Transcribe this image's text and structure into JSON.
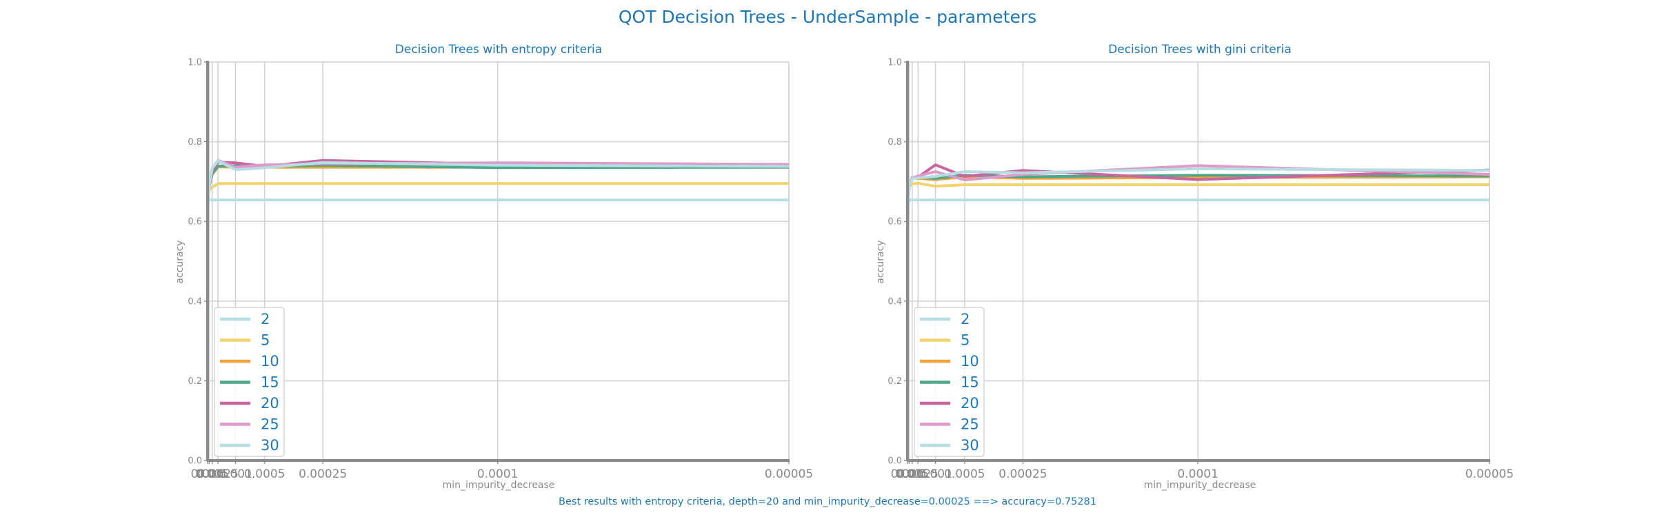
{
  "figure": {
    "title": "QOT Decision Trees - UnderSample - parameters",
    "footer": "Best results with entropy criteria, depth=20 and min_impurity_decrease=0.00025 ==> accuracy=0.75281"
  },
  "colors": {
    "title": "#1f77b4",
    "axes": "#8a8a8a",
    "grid": "#d2d2d2",
    "series": [
      "#b6dde3",
      "#f1d36e",
      "#f3a13a",
      "#4ea88a",
      "#c9669f",
      "#de9ac9",
      "#b6dde3"
    ]
  },
  "chart_data": [
    {
      "type": "line",
      "title": "Decision Trees with entropy criteria",
      "xlabel": "min_impurity_decrease",
      "ylabel": "accuracy",
      "x_scale": "reciprocal",
      "x_ticks": [
        0.025,
        0.01,
        0.005,
        0.0025,
        0.001,
        0.0005,
        0.00025,
        0.0001,
        5e-05
      ],
      "x_tick_labels": [
        "0.025",
        "0.01",
        "0.005",
        "0.0025",
        "0.001",
        "0.0005",
        "0.00025",
        "0.0001",
        "0.00005"
      ],
      "ylim": [
        0,
        1
      ],
      "y_ticks": [
        0.0,
        0.2,
        0.4,
        0.6,
        0.8,
        1.0
      ],
      "y_tick_labels": [
        "0.0",
        "0.2",
        "0.4",
        "0.6",
        "0.8",
        "1.0"
      ],
      "grid": true,
      "legend_position": "lower-left",
      "x": [
        0.025,
        0.01,
        0.005,
        0.0025,
        0.001,
        0.0005,
        0.00025,
        0.0001,
        5e-05
      ],
      "series": [
        {
          "name": "2",
          "values": [
            0.649,
            0.654,
            0.654,
            0.654,
            0.654,
            0.654,
            0.654,
            0.654,
            0.654
          ]
        },
        {
          "name": "5",
          "values": [
            0.649,
            0.679,
            0.686,
            0.695,
            0.695,
            0.695,
            0.695,
            0.695,
            0.695
          ]
        },
        {
          "name": "10",
          "values": [
            0.649,
            0.689,
            0.718,
            0.737,
            0.736,
            0.736,
            0.736,
            0.736,
            0.736
          ]
        },
        {
          "name": "15",
          "values": [
            0.649,
            0.69,
            0.72,
            0.739,
            0.74,
            0.738,
            0.741,
            0.735,
            0.736
          ]
        },
        {
          "name": "20",
          "values": [
            0.649,
            0.691,
            0.728,
            0.749,
            0.747,
            0.738,
            0.753,
            0.744,
            0.74
          ]
        },
        {
          "name": "25",
          "values": [
            0.649,
            0.691,
            0.732,
            0.753,
            0.736,
            0.742,
            0.745,
            0.747,
            0.743
          ]
        },
        {
          "name": "30",
          "values": [
            0.649,
            0.692,
            0.734,
            0.752,
            0.73,
            0.735,
            0.748,
            0.741,
            0.738
          ]
        }
      ]
    },
    {
      "type": "line",
      "title": "Decision Trees with gini criteria",
      "xlabel": "min_impurity_decrease",
      "ylabel": "accuracy",
      "x_scale": "reciprocal",
      "x_ticks": [
        0.025,
        0.01,
        0.005,
        0.0025,
        0.001,
        0.0005,
        0.00025,
        0.0001,
        5e-05
      ],
      "x_tick_labels": [
        "0.025",
        "0.01",
        "0.005",
        "0.0025",
        "0.001",
        "0.0005",
        "0.00025",
        "0.0001",
        "0.00005"
      ],
      "ylim": [
        0,
        1
      ],
      "y_ticks": [
        0.0,
        0.2,
        0.4,
        0.6,
        0.8,
        1.0
      ],
      "y_tick_labels": [
        "0.0",
        "0.2",
        "0.4",
        "0.6",
        "0.8",
        "1.0"
      ],
      "grid": true,
      "legend_position": "lower-left",
      "x": [
        0.025,
        0.01,
        0.005,
        0.0025,
        0.001,
        0.0005,
        0.00025,
        0.0001,
        5e-05
      ],
      "series": [
        {
          "name": "2",
          "values": [
            0.626,
            0.654,
            0.654,
            0.654,
            0.654,
            0.654,
            0.654,
            0.654,
            0.654
          ]
        },
        {
          "name": "5",
          "values": [
            0.626,
            0.689,
            0.694,
            0.696,
            0.688,
            0.692,
            0.692,
            0.692,
            0.692
          ]
        },
        {
          "name": "10",
          "values": [
            0.626,
            0.69,
            0.708,
            0.708,
            0.705,
            0.712,
            0.708,
            0.71,
            0.712
          ]
        },
        {
          "name": "15",
          "values": [
            0.626,
            0.69,
            0.709,
            0.71,
            0.708,
            0.716,
            0.712,
            0.716,
            0.714
          ]
        },
        {
          "name": "20",
          "values": [
            0.626,
            0.69,
            0.71,
            0.711,
            0.742,
            0.713,
            0.728,
            0.705,
            0.729
          ]
        },
        {
          "name": "25",
          "values": [
            0.626,
            0.69,
            0.709,
            0.714,
            0.725,
            0.704,
            0.718,
            0.74,
            0.718
          ]
        },
        {
          "name": "30",
          "values": [
            0.626,
            0.691,
            0.708,
            0.709,
            0.713,
            0.725,
            0.722,
            0.732,
            0.728
          ]
        }
      ]
    }
  ]
}
